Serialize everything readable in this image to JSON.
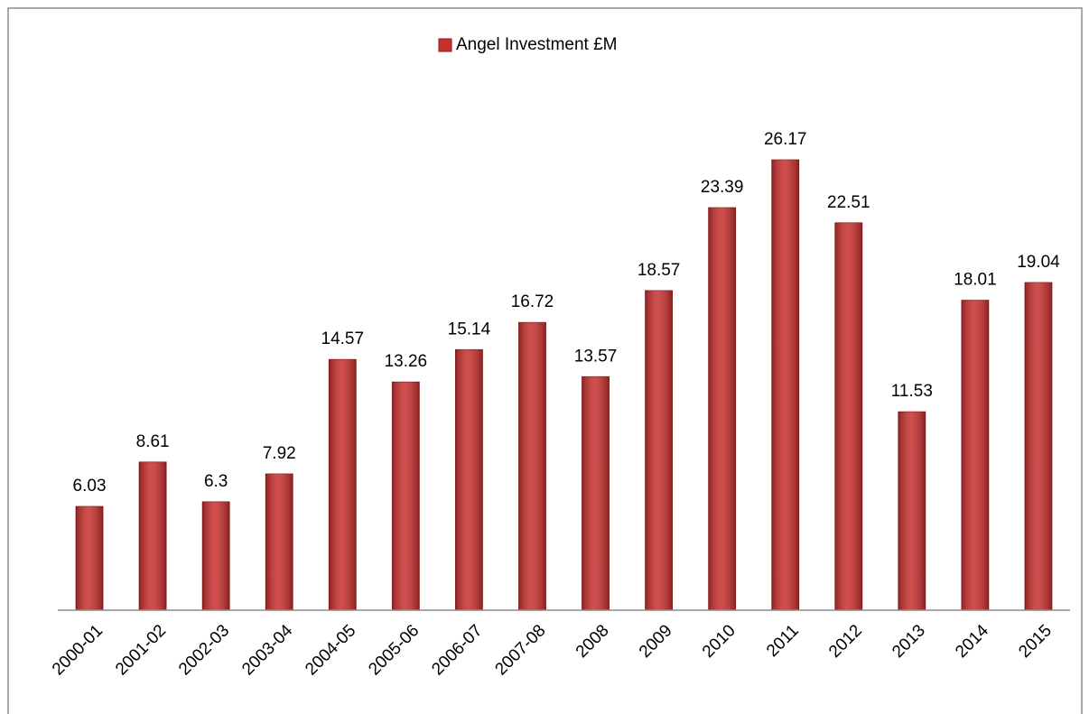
{
  "chart_data": {
    "type": "bar",
    "categories": [
      "2000-01",
      "2001-02",
      "2002-03",
      "2003-04",
      "2004-05",
      "2005-06",
      "2006-07",
      "2007-08",
      "2008",
      "2009",
      "2010",
      "2011",
      "2012",
      "2013",
      "2014",
      "2015"
    ],
    "series": [
      {
        "name": "Angel Investment £M",
        "color": "#c8302e",
        "values": [
          6.03,
          8.61,
          6.3,
          7.92,
          14.57,
          13.26,
          15.14,
          16.72,
          13.57,
          18.57,
          23.39,
          26.17,
          22.51,
          11.53,
          18.01,
          19.04
        ]
      }
    ],
    "ylim": [
      0,
      30
    ],
    "grid": false,
    "legend": "top"
  }
}
